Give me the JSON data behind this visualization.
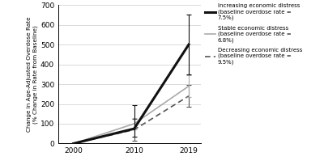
{
  "years": [
    2000,
    2010,
    2019
  ],
  "increasing": [
    0,
    75,
    500
  ],
  "increasing_err_low": [
    0,
    40,
    150
  ],
  "increasing_err_high": [
    0,
    120,
    150
  ],
  "stable": [
    0,
    100,
    290
  ],
  "stable_err_low": [
    0,
    30,
    55
  ],
  "stable_err_high": [
    0,
    30,
    55
  ],
  "decreasing": [
    0,
    70,
    240
  ],
  "decreasing_err_low": [
    0,
    55,
    55
  ],
  "decreasing_err_high": [
    0,
    55,
    55
  ],
  "ylim": [
    0,
    700
  ],
  "yticks": [
    0,
    100,
    200,
    300,
    400,
    500,
    600,
    700
  ],
  "xticks": [
    2000,
    2010,
    2019
  ],
  "ylabel": "Change in Age-Adjusted Overdose Rate\n(% Change in Rate from Baseline)",
  "legend_increasing": "Increasing economic distress\n(baseline overdose rate =\n7.5%)",
  "legend_stable": "Stable economic distress\n(baseline overdose rate =\n6.8%)",
  "legend_decreasing": "Decreasing economic distress\n(baseline overdose rate =\n9.5%)",
  "color_increasing": "#111111",
  "color_stable": "#aaaaaa",
  "color_decreasing": "#555555",
  "background": "#ffffff",
  "figwidth": 4.0,
  "figheight": 2.04,
  "dpi": 100
}
